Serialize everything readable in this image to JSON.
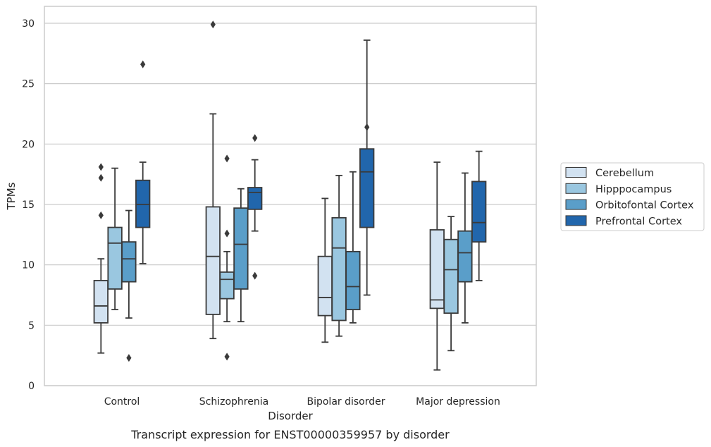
{
  "caption": "Transcript expression for ENST00000359957 by disorder",
  "chart_data": {
    "type": "box",
    "title": "",
    "xlabel": "Disorder",
    "ylabel": "TPMs",
    "ylim": [
      0,
      31.4
    ],
    "yticks": [
      0,
      5,
      10,
      15,
      20,
      25,
      30
    ],
    "grid": "horizontal",
    "legend_position": "right",
    "categories": [
      "Control",
      "Schizophrenia",
      "Bipolar disorder",
      "Major depression"
    ],
    "series": [
      {
        "name": "Cerebellum",
        "color": "#d2e2f1",
        "boxes": [
          {
            "whisker_low": 2.7,
            "q1": 5.2,
            "median": 6.6,
            "q3": 8.7,
            "whisker_high": 10.5,
            "outliers": [
              14.1,
              17.2,
              18.1
            ]
          },
          {
            "whisker_low": 3.9,
            "q1": 5.9,
            "median": 10.7,
            "q3": 14.8,
            "whisker_high": 22.5,
            "outliers": [
              29.9
            ]
          },
          {
            "whisker_low": 3.6,
            "q1": 5.8,
            "median": 7.3,
            "q3": 10.7,
            "whisker_high": 15.5,
            "outliers": []
          },
          {
            "whisker_low": 1.3,
            "q1": 6.4,
            "median": 7.1,
            "q3": 12.9,
            "whisker_high": 18.5,
            "outliers": []
          }
        ]
      },
      {
        "name": "Hipppocampus",
        "color": "#9ac7e0",
        "boxes": [
          {
            "whisker_low": 6.3,
            "q1": 8.0,
            "median": 11.8,
            "q3": 13.1,
            "whisker_high": 18.0,
            "outliers": []
          },
          {
            "whisker_low": 5.3,
            "q1": 7.2,
            "median": 8.8,
            "q3": 9.4,
            "whisker_high": 11.1,
            "outliers": [
              2.4,
              12.6,
              18.8
            ]
          },
          {
            "whisker_low": 4.1,
            "q1": 5.4,
            "median": 11.4,
            "q3": 13.9,
            "whisker_high": 17.4,
            "outliers": []
          },
          {
            "whisker_low": 2.9,
            "q1": 6.0,
            "median": 9.6,
            "q3": 12.1,
            "whisker_high": 14.0,
            "outliers": []
          }
        ]
      },
      {
        "name": "Orbitofontal Cortex",
        "color": "#5a9ec9",
        "boxes": [
          {
            "whisker_low": 5.6,
            "q1": 8.6,
            "median": 10.5,
            "q3": 11.9,
            "whisker_high": 14.5,
            "outliers": [
              2.3
            ]
          },
          {
            "whisker_low": 5.3,
            "q1": 8.0,
            "median": 11.7,
            "q3": 14.7,
            "whisker_high": 16.3,
            "outliers": []
          },
          {
            "whisker_low": 5.2,
            "q1": 6.3,
            "median": 8.2,
            "q3": 11.1,
            "whisker_high": 17.7,
            "outliers": []
          },
          {
            "whisker_low": 5.2,
            "q1": 8.6,
            "median": 11.0,
            "q3": 12.8,
            "whisker_high": 17.6,
            "outliers": []
          }
        ]
      },
      {
        "name": "Prefrontal Cortex",
        "color": "#2166ac",
        "boxes": [
          {
            "whisker_low": 10.1,
            "q1": 13.1,
            "median": 15.0,
            "q3": 17.0,
            "whisker_high": 18.5,
            "outliers": [
              26.6
            ]
          },
          {
            "whisker_low": 12.8,
            "q1": 14.6,
            "median": 16.0,
            "q3": 16.4,
            "whisker_high": 18.7,
            "outliers": [
              9.1,
              20.5
            ]
          },
          {
            "whisker_low": 7.5,
            "q1": 13.1,
            "median": 17.7,
            "q3": 19.6,
            "whisker_high": 28.6,
            "outliers": [
              21.4
            ]
          },
          {
            "whisker_low": 8.7,
            "q1": 11.9,
            "median": 13.5,
            "q3": 16.9,
            "whisker_high": 19.4,
            "outliers": []
          }
        ]
      }
    ]
  }
}
